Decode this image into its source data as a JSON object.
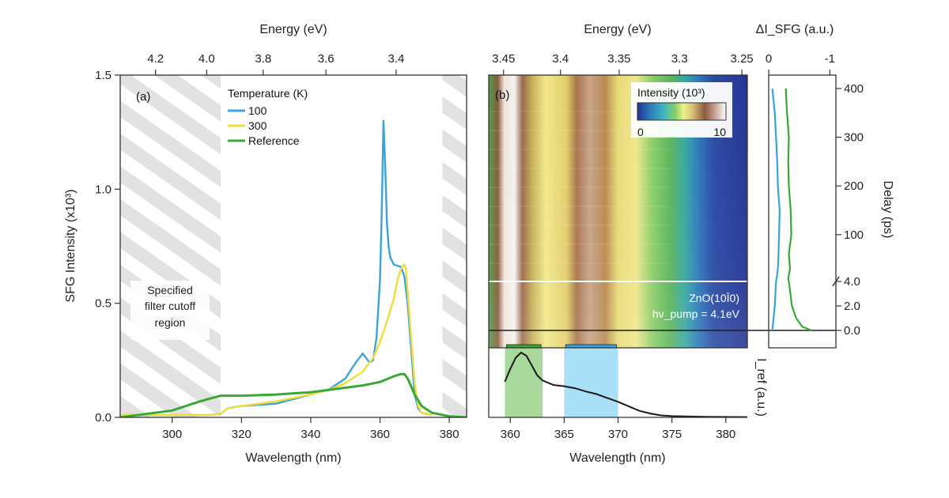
{
  "chart_data": [
    {
      "panel": "(a)",
      "type": "line",
      "xlabel": "Wavelength (nm)",
      "ylabel": "SFG Intensity (x10³)",
      "top_xlabel": "Energy (eV)",
      "xlim": [
        285,
        385
      ],
      "ylim": [
        0,
        1.5
      ],
      "x_ticks": [
        300,
        320,
        340,
        360,
        380
      ],
      "y_ticks": [
        0.0,
        0.5,
        1.0,
        1.5
      ],
      "y_tick_labels": [
        "0.0",
        "0.5",
        "1.0",
        "1.5"
      ],
      "top_ticks": [
        4.2,
        4.0,
        3.8,
        3.6,
        3.4
      ],
      "top_tick_labels": [
        "4.2",
        "4.0",
        "3.8",
        "3.6",
        "3.4"
      ],
      "legend": {
        "title": "Temperature (K)",
        "placement": "top-left"
      },
      "annotation": [
        "Specified",
        "filter cutoff",
        "region"
      ],
      "hatched_regions": [
        [
          285,
          314
        ],
        [
          378,
          385
        ]
      ],
      "series": [
        {
          "name": "100",
          "color": "#3aa3dc",
          "x": [
            285,
            295,
            305,
            310,
            314,
            316,
            320,
            330,
            340,
            345,
            350,
            353,
            355,
            357,
            358,
            359,
            360,
            360.5,
            361,
            361.5,
            362,
            362.5,
            363,
            364,
            366,
            367,
            368,
            369,
            370,
            371,
            372,
            375
          ],
          "y": [
            0.01,
            0.01,
            0.01,
            0.01,
            0.015,
            0.04,
            0.05,
            0.06,
            0.1,
            0.12,
            0.17,
            0.24,
            0.28,
            0.24,
            0.25,
            0.35,
            0.6,
            0.9,
            1.3,
            1.1,
            0.85,
            0.75,
            0.7,
            0.67,
            0.66,
            0.62,
            0.5,
            0.3,
            0.1,
            0.04,
            0.02,
            0.01
          ]
        },
        {
          "name": "300",
          "color": "#f2dc3a",
          "x": [
            285,
            295,
            305,
            310,
            314,
            316,
            320,
            330,
            340,
            345,
            350,
            355,
            358,
            360,
            362,
            364,
            365,
            366,
            367,
            367.5,
            368,
            369,
            370,
            371,
            372,
            375
          ],
          "y": [
            0.01,
            0.01,
            0.01,
            0.01,
            0.015,
            0.04,
            0.05,
            0.07,
            0.1,
            0.12,
            0.15,
            0.2,
            0.26,
            0.33,
            0.42,
            0.52,
            0.6,
            0.65,
            0.67,
            0.65,
            0.55,
            0.35,
            0.15,
            0.05,
            0.02,
            0.01
          ]
        },
        {
          "name": "Reference",
          "color": "#3aa835",
          "x": [
            285,
            300,
            308,
            314,
            320,
            330,
            340,
            350,
            355,
            360,
            364,
            366,
            367,
            368,
            370,
            372,
            375,
            380,
            385
          ],
          "y": [
            0.0,
            0.03,
            0.07,
            0.095,
            0.095,
            0.1,
            0.11,
            0.13,
            0.14,
            0.155,
            0.18,
            0.19,
            0.19,
            0.17,
            0.1,
            0.05,
            0.02,
            0.005,
            0.0
          ]
        }
      ]
    },
    {
      "panel": "(b)",
      "type": "heatmap",
      "xlabel": "Wavelength (nm)",
      "top_xlabel": "Energy (eV)",
      "xlim": [
        358,
        382
      ],
      "x_ticks": [
        360,
        365,
        370,
        375,
        380
      ],
      "top_ticks": [
        3.45,
        3.4,
        3.35,
        3.3,
        3.25
      ],
      "top_tick_labels": [
        "3.45",
        "3.4",
        "3.35",
        "3.3",
        "3.25"
      ],
      "right_ylabel": "Delay (ps)",
      "delay_ticks": [
        400,
        300,
        200,
        100,
        4.0,
        2.0,
        0.0
      ],
      "delay_tick_labels": [
        "400",
        "300",
        "200",
        "100",
        "4.0",
        "2.0",
        "0.0"
      ],
      "colorbar": {
        "label": "Intensity (10³)",
        "min_label": "0",
        "max_label": "10",
        "range": [
          0,
          12
        ]
      },
      "annotation_lines": [
        "ZnO(10Ī0)",
        "hν_pump = 4.1eV"
      ],
      "spectrum": {
        "ylabel": "I_ref (a.u.)",
        "color": "#1a1a1a",
        "x": [
          359.5,
          360,
          360.5,
          361,
          361.5,
          362,
          362.5,
          363,
          364,
          365,
          366,
          367,
          368,
          369,
          370,
          371,
          372,
          373,
          374,
          375,
          378,
          382
        ],
        "y": [
          0.55,
          0.75,
          0.92,
          1.0,
          0.95,
          0.8,
          0.65,
          0.57,
          0.5,
          0.48,
          0.45,
          0.4,
          0.36,
          0.3,
          0.24,
          0.17,
          0.1,
          0.06,
          0.03,
          0.02,
          0.01,
          0.005
        ]
      },
      "highlight_bands": [
        {
          "x": [
            359.5,
            363
          ],
          "color": "#a8d99a"
        },
        {
          "x": [
            365,
            370
          ],
          "color": "#a9e0f8"
        }
      ]
    },
    {
      "panel": "side",
      "type": "line",
      "top_xlabel": "ΔI_SFG (a.u.)",
      "top_ticks": [
        0,
        -1
      ],
      "top_tick_labels": [
        "0",
        "-1"
      ],
      "xlim": [
        0,
        -1.1
      ],
      "ylim_ps": [
        0,
        420
      ],
      "series": [
        {
          "name": "blue",
          "color": "#3aa3dc",
          "delay": [
            0,
            2,
            4,
            10,
            30,
            60,
            100,
            150,
            200,
            250,
            300,
            350,
            400
          ],
          "value": [
            -0.06,
            -0.1,
            -0.12,
            -0.13,
            -0.15,
            -0.16,
            -0.17,
            -0.18,
            -0.15,
            -0.14,
            -0.12,
            -0.1,
            -0.06
          ]
        },
        {
          "name": "green",
          "color": "#3aa835",
          "delay": [
            0,
            0.3,
            1,
            2,
            4,
            10,
            30,
            60,
            100,
            150,
            200,
            250,
            300,
            350,
            400
          ],
          "value": [
            -0.7,
            -0.55,
            -0.45,
            -0.38,
            -0.33,
            -0.32,
            -0.35,
            -0.33,
            -0.37,
            -0.36,
            -0.33,
            -0.32,
            -0.33,
            -0.3,
            -0.28
          ]
        }
      ]
    }
  ]
}
